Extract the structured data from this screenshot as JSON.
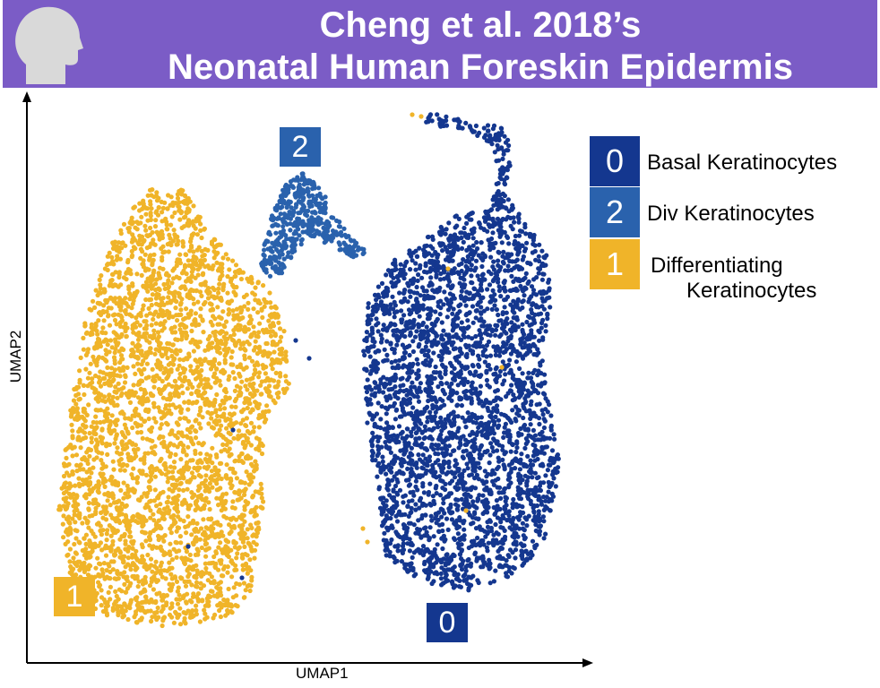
{
  "header": {
    "title_line1": "Cheng et al. 2018’s",
    "title_line2": "Neonatal Human Foreskin Epidermis",
    "background": "#7b5cc6",
    "icon": "human-head-silhouette-icon"
  },
  "chart_data": {
    "type": "scatter",
    "title": "Cheng et al. 2018’s Neonatal Human Foreskin Epidermis",
    "xlabel": "UMAP1",
    "ylabel": "UMAP2",
    "axis_ticks": false,
    "grid": false,
    "legend_position": "right",
    "clusters": [
      {
        "id": "0",
        "name": "Basal Keratinocytes",
        "color": "#14378f"
      },
      {
        "id": "2",
        "name": "Div Keratinocytes",
        "color": "#2a62ad"
      },
      {
        "id": "1",
        "name": "Differentiating Keratinocytes",
        "color": "#f0b429"
      }
    ],
    "cluster_labels": [
      "0",
      "2",
      "1"
    ]
  },
  "legend": {
    "items": [
      {
        "id": "0",
        "line1": "Basal Keratinocytes",
        "line2": "",
        "color": "#14378f"
      },
      {
        "id": "2",
        "line1": "Div Keratinocytes",
        "line2": "",
        "color": "#2a62ad"
      },
      {
        "id": "1",
        "line1": "Differentiating",
        "line2": "Keratinocytes",
        "color": "#f0b429"
      }
    ]
  }
}
